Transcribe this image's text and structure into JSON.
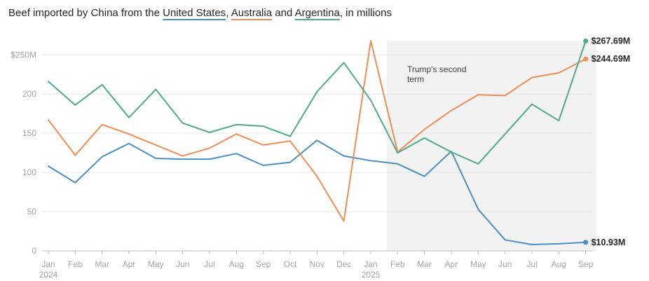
{
  "title": {
    "prefix": "Beef imported by China from the",
    "sep1": ",",
    "sep2": "and",
    "suffix": ", in millions"
  },
  "colors": {
    "united_states": "#4a8fc2",
    "australia": "#ef8d55",
    "argentina": "#4daa8c",
    "shade": "#f2f2f2",
    "grid": "#e6e6e6",
    "axis": "#bfbfbf"
  },
  "chart_data": {
    "type": "line",
    "title": "Beef imported by China from the United States, Australia and Argentina, in millions",
    "xlabel": "",
    "ylabel": "",
    "categories": [
      "Jan",
      "Feb",
      "Mar",
      "Apr",
      "May",
      "Jun",
      "Jul",
      "Aug",
      "Sep",
      "Oct",
      "Nov",
      "Dec",
      "Jan",
      "Feb",
      "Mar",
      "Apr",
      "May",
      "Jun",
      "Jul",
      "Aug",
      "Sep"
    ],
    "year_labels": [
      {
        "index": 0,
        "label": "2024"
      },
      {
        "index": 12,
        "label": "2025"
      }
    ],
    "ylim": [
      0,
      250
    ],
    "yticks": [
      {
        "value": 0,
        "label": "0"
      },
      {
        "value": 50,
        "label": "50"
      },
      {
        "value": 100,
        "label": "100"
      },
      {
        "value": 150,
        "label": "150"
      },
      {
        "value": 200,
        "label": "200"
      },
      {
        "value": 250,
        "label": "$250M"
      }
    ],
    "grid": true,
    "series": [
      {
        "key": "united_states",
        "name": "United States",
        "values": [
          108,
          87,
          120,
          137,
          118,
          117,
          117,
          124,
          109,
          113,
          141,
          121,
          115,
          111,
          95,
          127,
          53,
          14,
          8,
          9,
          10.93
        ],
        "end_label": "$10.93M"
      },
      {
        "key": "australia",
        "name": "Australia",
        "values": [
          167,
          122,
          161,
          149,
          135,
          121,
          131,
          149,
          135,
          140,
          95,
          38,
          268,
          126,
          155,
          179,
          199,
          198,
          221,
          227,
          244.69
        ],
        "end_label": "$244.69M"
      },
      {
        "key": "argentina",
        "name": "Argentina",
        "values": [
          216,
          186,
          212,
          170,
          206,
          163,
          151,
          161,
          159,
          146,
          203,
          240,
          192,
          125,
          144,
          126,
          111,
          149,
          187,
          166,
          267.69
        ],
        "end_label": "$267.69M"
      }
    ],
    "shaded_region": {
      "start_index": 12.6,
      "end_index": 20.4,
      "label_line1": "Trump's second",
      "label_line2": "term"
    }
  }
}
